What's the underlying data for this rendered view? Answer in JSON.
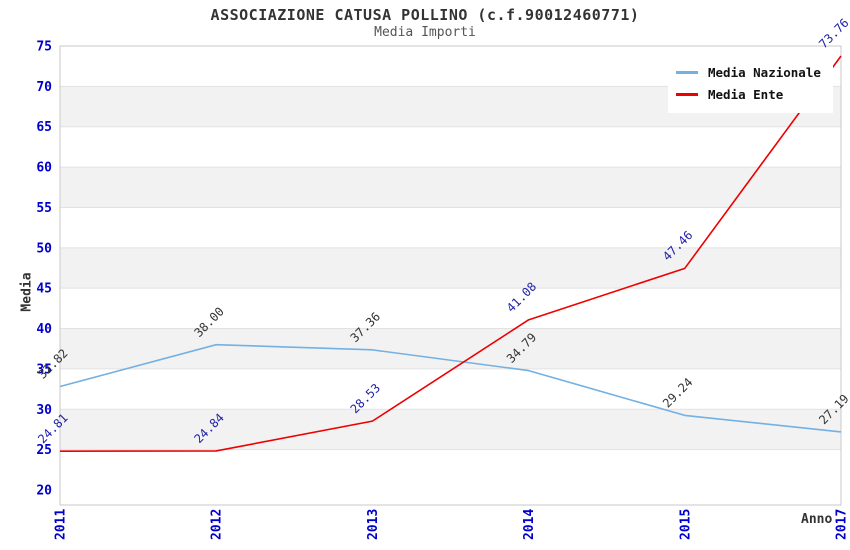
{
  "chart_data": {
    "type": "line",
    "title": "ASSOCIAZIONE CATUSA POLLINO (c.f.90012460771)",
    "subtitle": "Media Importi",
    "xlabel": "Anno",
    "ylabel": "Media",
    "categories": [
      "2011",
      "2012",
      "2013",
      "2014",
      "2015",
      "2017"
    ],
    "series": [
      {
        "name": "Media Nazionale",
        "color": "#74b0e2",
        "label_color": "#333333",
        "values": [
          32.82,
          38.0,
          37.36,
          34.79,
          29.24,
          27.19
        ],
        "labels": [
          "32.82",
          "38.00",
          "37.36",
          "34.79",
          "29.24",
          "27.19"
        ]
      },
      {
        "name": "Media Ente",
        "color": "#ee0000",
        "label_color": "#1f1fa6",
        "values": [
          24.81,
          24.84,
          28.53,
          41.08,
          47.46,
          73.76
        ],
        "labels": [
          "24.81",
          "24.84",
          "28.53",
          "41.08",
          "47.46",
          "73.76"
        ]
      }
    ],
    "ylim": [
      20,
      75
    ],
    "yticks": [
      20,
      25,
      30,
      35,
      40,
      45,
      50,
      55,
      60,
      65,
      70,
      75
    ],
    "grid": true,
    "legend_position": "top-right",
    "tick_color": "#0000cc",
    "band_colors": [
      "#ffffff",
      "#f2f2f2"
    ],
    "border_color": "#c9c9c9",
    "grid_color": "#e2e2e2"
  }
}
